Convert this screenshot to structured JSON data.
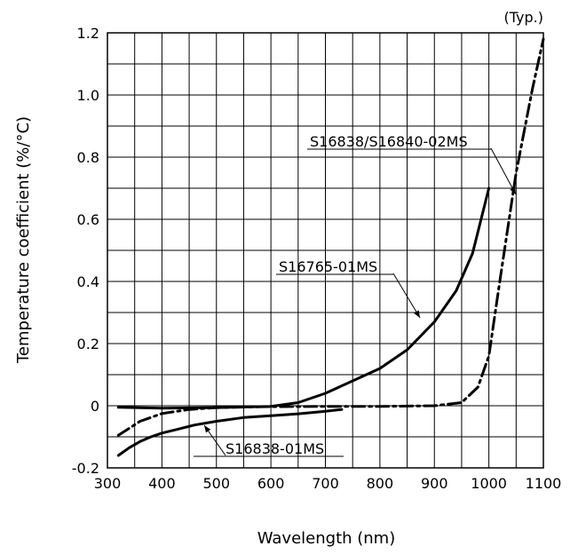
{
  "chart_data": {
    "type": "line",
    "title": "",
    "note": "(Typ.)",
    "xlabel": "Wavelength (nm)",
    "ylabel": "Temperature coefficient (%/°C)",
    "xlim": [
      300,
      1100
    ],
    "ylim": [
      -0.2,
      1.2
    ],
    "xticks": [
      "300",
      "400",
      "500",
      "600",
      "700",
      "800",
      "900",
      "1000",
      "1100"
    ],
    "yticks": [
      "-0.2",
      "0",
      "0.2",
      "0.4",
      "0.6",
      "0.8",
      "1.0",
      "1.2"
    ],
    "grid": true,
    "series": [
      {
        "name": "S16838-01MS",
        "style": "solid",
        "x": [
          320,
          340,
          360,
          380,
          400,
          430,
          460,
          500,
          550,
          600,
          650,
          700,
          730
        ],
        "y": [
          -0.16,
          -0.135,
          -0.115,
          -0.1,
          -0.088,
          -0.075,
          -0.062,
          -0.05,
          -0.038,
          -0.032,
          -0.026,
          -0.018,
          -0.012
        ]
      },
      {
        "name": "S16765-01MS",
        "style": "solid",
        "x": [
          320,
          400,
          500,
          600,
          650,
          700,
          750,
          800,
          850,
          900,
          940,
          970,
          1000
        ],
        "y": [
          -0.005,
          -0.008,
          -0.006,
          -0.002,
          0.01,
          0.04,
          0.08,
          0.12,
          0.18,
          0.27,
          0.37,
          0.49,
          0.7
        ]
      },
      {
        "name": "S16838/S16840-02MS",
        "style": "dash-dot",
        "x": [
          320,
          360,
          400,
          450,
          500,
          600,
          700,
          800,
          900,
          950,
          980,
          1000,
          1020,
          1050,
          1080,
          1100
        ],
        "y": [
          -0.095,
          -0.05,
          -0.025,
          -0.012,
          -0.006,
          -0.003,
          -0.002,
          -0.002,
          0.0,
          0.01,
          0.06,
          0.16,
          0.4,
          0.75,
          1.02,
          1.18
        ]
      }
    ],
    "labels": [
      {
        "text": "S16838/S16840-02MS",
        "series": 2
      },
      {
        "text": "S16765-01MS",
        "series": 1
      },
      {
        "text": "S16838-01MS",
        "series": 0
      }
    ]
  }
}
